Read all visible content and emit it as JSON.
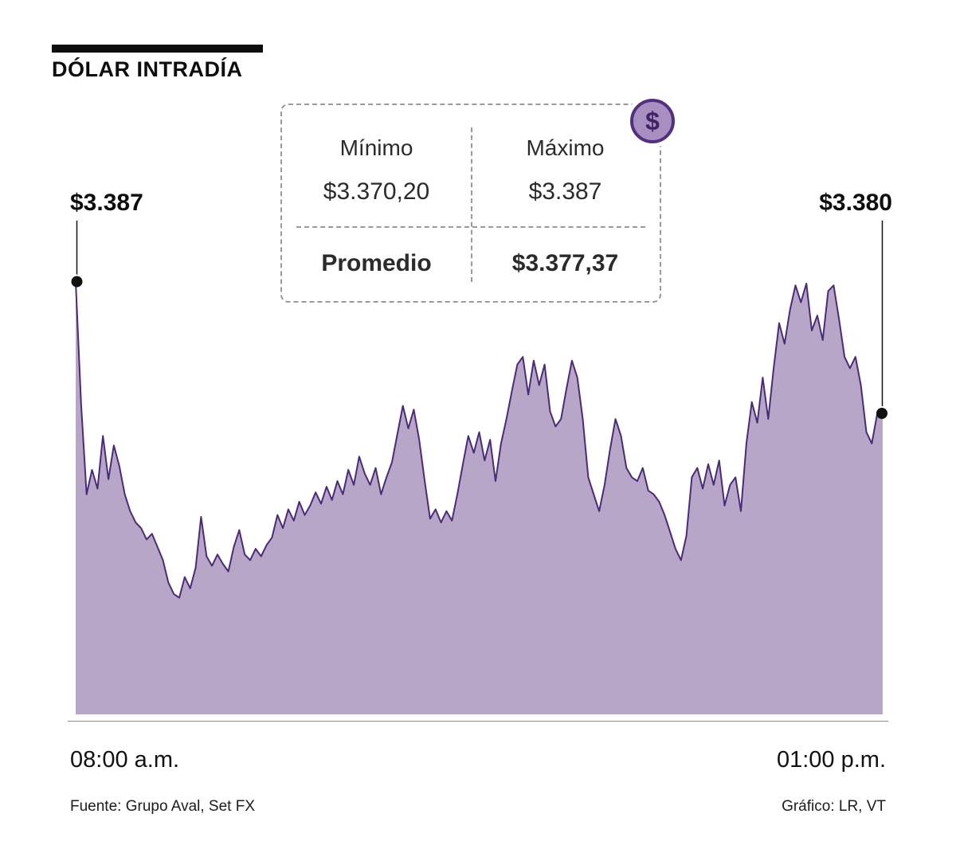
{
  "header": {
    "title": "DÓLAR INTRADÍA"
  },
  "infobox": {
    "min_label": "Mínimo",
    "min_value": "$3.370,20",
    "max_label": "Máximo",
    "max_value": "$3.387",
    "avg_label": "Promedio",
    "avg_value": "$3.377,37",
    "dollar_icon_glyph": "$"
  },
  "annotations": {
    "start_label": "$3.387",
    "end_label": "$3.380"
  },
  "x_axis": {
    "start": "08:00 a.m.",
    "end": "01:00 p.m."
  },
  "footer": {
    "source": "Fuente: Grupo Aval, Set FX",
    "credit": "Gráfico: LR, VT"
  },
  "colors": {
    "area_fill": "#b7a6c8",
    "line": "#4b2a78",
    "accent": "#53307e",
    "marker": "#111111"
  },
  "chart_data": {
    "type": "area",
    "title": "DÓLAR INTRADÍA",
    "xlabel": "",
    "ylabel": "",
    "x_range_labels": [
      "08:00 a.m.",
      "01:00 p.m."
    ],
    "stats": {
      "min": 3370.2,
      "max": 3387.0,
      "avg": 3377.37
    },
    "start_value": 3387,
    "end_value": 3380,
    "ylim": [
      3364,
      3388
    ],
    "grid": false,
    "legend": false,
    "values": [
      3387.0,
      3380.5,
      3375.7,
      3377.0,
      3376.0,
      3378.8,
      3376.5,
      3378.3,
      3377.2,
      3375.7,
      3374.8,
      3374.2,
      3373.9,
      3373.3,
      3373.6,
      3372.9,
      3372.2,
      3371.0,
      3370.4,
      3370.2,
      3371.3,
      3370.7,
      3371.8,
      3374.5,
      3372.4,
      3371.9,
      3372.5,
      3372.0,
      3371.6,
      3372.9,
      3373.8,
      3372.5,
      3372.2,
      3372.8,
      3372.4,
      3373.0,
      3373.4,
      3374.6,
      3373.9,
      3374.9,
      3374.3,
      3375.3,
      3374.6,
      3375.1,
      3375.8,
      3375.2,
      3376.1,
      3375.4,
      3376.4,
      3375.7,
      3377.0,
      3376.2,
      3377.7,
      3376.8,
      3376.2,
      3377.1,
      3375.7,
      3376.6,
      3377.4,
      3378.9,
      3380.4,
      3379.2,
      3380.2,
      3378.6,
      3376.4,
      3374.4,
      3374.9,
      3374.2,
      3374.8,
      3374.3,
      3375.7,
      3377.3,
      3378.8,
      3377.9,
      3379.0,
      3377.5,
      3378.6,
      3376.4,
      3378.4,
      3379.7,
      3381.2,
      3382.6,
      3383.0,
      3381.0,
      3382.8,
      3381.5,
      3382.6,
      3380.1,
      3379.3,
      3379.7,
      3381.3,
      3382.8,
      3381.9,
      3379.7,
      3376.6,
      3375.7,
      3374.8,
      3376.2,
      3378.1,
      3379.7,
      3378.8,
      3377.1,
      3376.6,
      3376.4,
      3377.1,
      3375.9,
      3375.7,
      3375.3,
      3374.6,
      3373.7,
      3372.8,
      3372.2,
      3373.5,
      3376.6,
      3377.1,
      3376.0,
      3377.3,
      3376.2,
      3377.5,
      3375.1,
      3376.2,
      3376.6,
      3374.8,
      3378.4,
      3380.6,
      3379.5,
      3381.9,
      3379.7,
      3382.4,
      3384.8,
      3383.7,
      3385.5,
      3386.8,
      3385.9,
      3386.9,
      3384.4,
      3385.2,
      3383.9,
      3386.5,
      3386.8,
      3385.0,
      3383.0,
      3382.4,
      3383.0,
      3381.5,
      3379.0,
      3378.4,
      3380.0,
      3380.0
    ]
  }
}
